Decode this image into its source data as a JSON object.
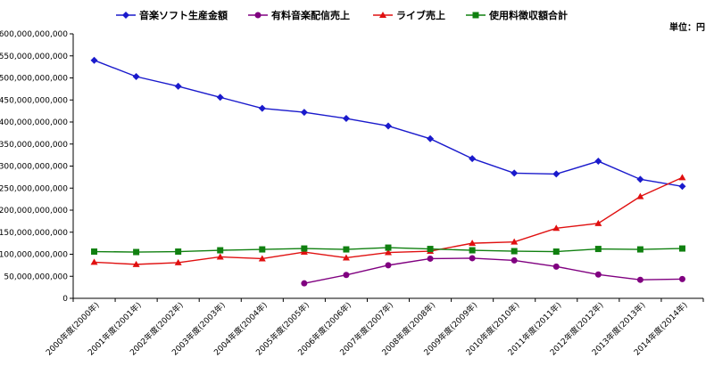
{
  "chart_data": {
    "type": "line",
    "title": "",
    "unit_label": "単位：円",
    "xlabel": "",
    "ylabel": "",
    "ylim": [
      0,
      600000000000
    ],
    "y_step": 50000000000,
    "y_ticks": [
      "0",
      "50,000,000,000",
      "100,000,000,000",
      "150,000,000,000",
      "200,000,000,000",
      "250,000,000,000",
      "300,000,000,000",
      "350,000,000,000",
      "400,000,000,000",
      "450,000,000,000",
      "500,000,000,000",
      "550,000,000,000",
      "600,000,000,000"
    ],
    "categories": [
      "2000年度(2000年)",
      "2001年度(2001年)",
      "2002年度(2002年)",
      "2003年度(2003年)",
      "2004年度(2004年)",
      "2005年度(2005年)",
      "2006年度(2006年)",
      "2007年度(2007年)",
      "2008年度(2008年)",
      "2009年度(2009年)",
      "2010年度(2010年)",
      "2011年度(2011年)",
      "2012年度(2012年)",
      "2013年度(2013年)",
      "2014年度(2014年)"
    ],
    "legend_position": "top",
    "grid": false,
    "series": [
      {
        "name": "音楽ソフト生産金額",
        "color": "#1a1acc",
        "marker": "diamond",
        "values": [
          540000000000,
          503000000000,
          481000000000,
          456000000000,
          431000000000,
          422000000000,
          408000000000,
          391000000000,
          362000000000,
          317000000000,
          284000000000,
          282000000000,
          311000000000,
          270000000000,
          254000000000
        ]
      },
      {
        "name": "有料音楽配信売上",
        "color": "#800080",
        "marker": "circle",
        "values": [
          null,
          null,
          null,
          null,
          null,
          34000000000,
          53000000000,
          75000000000,
          90000000000,
          91000000000,
          86000000000,
          72000000000,
          54000000000,
          42000000000,
          43700000000
        ]
      },
      {
        "name": "ライブ売上",
        "color": "#e01010",
        "marker": "triangle",
        "values": [
          82000000000,
          77000000000,
          81000000000,
          94000000000,
          90000000000,
          105000000000,
          92000000000,
          104000000000,
          107000000000,
          125000000000,
          128000000000,
          159000000000,
          170000000000,
          231000000000,
          274000000000
        ]
      },
      {
        "name": "使用料徴収額合計",
        "color": "#108010",
        "marker": "square",
        "values": [
          106000000000,
          105000000000,
          106000000000,
          109000000000,
          111000000000,
          113000000000,
          111000000000,
          115000000000,
          112000000000,
          109000000000,
          107000000000,
          106000000000,
          112000000000,
          111000000000,
          113000000000
        ]
      }
    ]
  }
}
